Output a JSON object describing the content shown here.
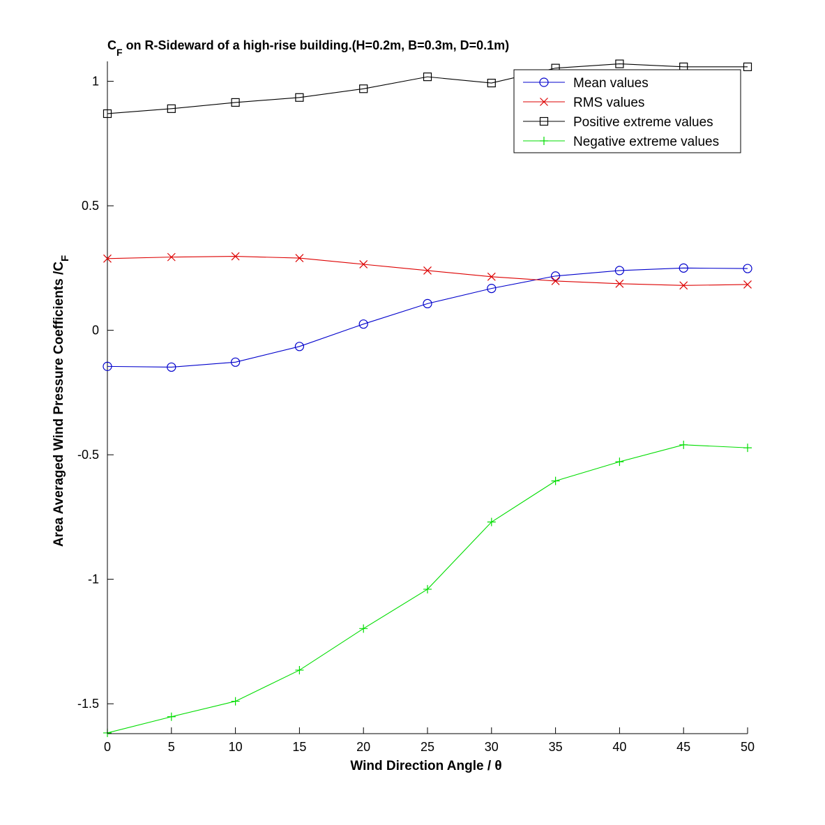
{
  "chart_data": {
    "type": "line",
    "title": {
      "prefix": "C",
      "subscript": "F",
      "rest": " on R-Sideward of a high-rise building.(H=0.2m, B=0.3m, D=0.1m)"
    },
    "xlabel": "Wind Direction Angle  / θ",
    "ylabel": {
      "main": "Area Averaged Wind Pressure Coefficients /C",
      "subscript": "F"
    },
    "x": [
      0,
      5,
      10,
      15,
      20,
      25,
      30,
      35,
      40,
      45,
      50
    ],
    "xlim": [
      0,
      50
    ],
    "ylim": [
      -1.62,
      1.08
    ],
    "xticks": [
      0,
      5,
      10,
      15,
      20,
      25,
      30,
      35,
      40,
      45,
      50
    ],
    "xtick_labels": [
      "0",
      "5",
      "10",
      "15",
      "20",
      "25",
      "30",
      "35",
      "40",
      "45",
      "50"
    ],
    "yticks": [
      -1.5,
      -1,
      -0.5,
      0,
      0.5,
      1
    ],
    "ytick_labels": [
      "-1.5",
      "-1",
      "-0.5",
      "0",
      "0.5",
      "1"
    ],
    "grid": false,
    "legend_position": "top-right",
    "series": [
      {
        "name": "Mean values",
        "color": "#0000cc",
        "marker": "circle",
        "values": [
          -0.145,
          -0.148,
          -0.128,
          -0.065,
          0.025,
          0.107,
          0.168,
          0.218,
          0.24,
          0.25,
          0.248
        ]
      },
      {
        "name": "RMS values",
        "color": "#dd0000",
        "marker": "x",
        "values": [
          0.288,
          0.294,
          0.297,
          0.29,
          0.265,
          0.24,
          0.215,
          0.198,
          0.187,
          0.18,
          0.184
        ]
      },
      {
        "name": "Positive extreme values",
        "color": "#000000",
        "marker": "square",
        "values": [
          0.87,
          0.89,
          0.915,
          0.935,
          0.97,
          1.018,
          0.993,
          1.053,
          1.07,
          1.058,
          1.058
        ]
      },
      {
        "name": "Negative extreme values",
        "color": "#00dd00",
        "marker": "plus",
        "values": [
          -1.617,
          -1.552,
          -1.49,
          -1.365,
          -1.198,
          -1.04,
          -0.77,
          -0.605,
          -0.528,
          -0.46,
          -0.472
        ]
      }
    ]
  }
}
